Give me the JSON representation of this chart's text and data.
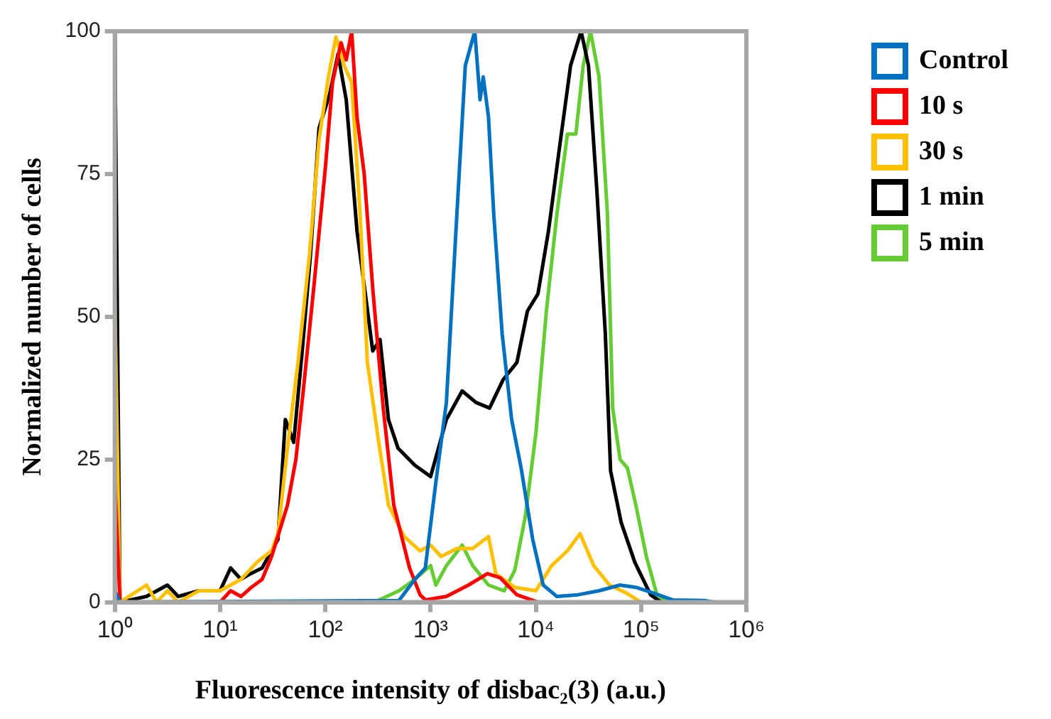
{
  "chart_data": {
    "type": "line",
    "xlabel": "Fluorescence intensity of disbac₂(3) (a.u.)",
    "ylabel": "Normalized number of cells",
    "log": "x",
    "xlim": [
      1,
      1000000
    ],
    "ylim": [
      0,
      100
    ],
    "xticks": [
      {
        "value": 1,
        "label": "10⁰"
      },
      {
        "value": 10,
        "label": "10¹"
      },
      {
        "value": 100,
        "label": "10²"
      },
      {
        "value": 1000,
        "label": "10³"
      },
      {
        "value": 10000,
        "label": "10⁴"
      },
      {
        "value": 100000,
        "label": "10⁵"
      },
      {
        "value": 1000000,
        "label": "10⁶"
      }
    ],
    "yticks": [
      0,
      25,
      50,
      75,
      100
    ],
    "grid": false,
    "legend": "right",
    "marker": "none",
    "line_style": "solid",
    "series": [
      {
        "name": "Control",
        "color": "#0070c0",
        "x": [
          1,
          1.12,
          501,
          708,
          891,
          1122,
          1413,
          1778,
          2138,
          2630,
          2951,
          3162,
          3548,
          3981,
          4786,
          5888,
          7244,
          9333,
          11750,
          15850,
          25120,
          39810,
          63100,
          89130,
          125900,
          199500,
          398100,
          501200
        ],
        "values": [
          2,
          0,
          0.3,
          4,
          6,
          21,
          35,
          68,
          94,
          100,
          88,
          92,
          85,
          68,
          47,
          32,
          23.5,
          11,
          3,
          1,
          1.3,
          2,
          3,
          2.6,
          1.7,
          0.4,
          0.3,
          0
        ]
      },
      {
        "name": "10 s",
        "color": "#ff0000",
        "x": [
          1,
          1.12,
          10,
          12.6,
          15.8,
          19.5,
          25.1,
          30.9,
          43.7,
          52.5,
          61.7,
          77.6,
          100,
          117,
          141,
          158,
          178,
          200,
          234,
          282,
          355,
          447,
          631,
          794,
          891,
          1413,
          2291,
          3467,
          4571,
          6607,
          10470
        ],
        "values": [
          21,
          0,
          0,
          2,
          1,
          2.5,
          4,
          8,
          17,
          25,
          37,
          55,
          76,
          91,
          98,
          95,
          100,
          85,
          75,
          55,
          34,
          17,
          6,
          1.3,
          0.4,
          1,
          3,
          5,
          4.3,
          1.3,
          0
        ]
      },
      {
        "name": "30 s",
        "color": "#ffc000",
        "x": [
          1,
          1.12,
          2,
          2.5,
          3.16,
          4,
          6.3,
          10,
          15.8,
          22.4,
          30.9,
          35.5,
          43.7,
          55,
          70.8,
          87.1,
          107,
          126,
          151,
          178,
          214,
          251,
          316,
          398,
          562,
          794,
          1000,
          1259,
          1778,
          2512,
          3548,
          4169,
          6310,
          10000,
          14130,
          19950,
          26300,
          35480,
          50120,
          70790,
          100000
        ],
        "values": [
          53,
          0,
          3,
          0,
          2,
          0,
          2,
          2,
          4,
          7,
          9,
          12,
          27,
          42,
          61,
          81,
          92,
          99,
          94,
          91,
          68,
          42,
          29,
          17,
          11.5,
          9,
          10,
          8,
          9.4,
          9.4,
          11.5,
          5,
          2.6,
          2,
          6.4,
          9,
          12,
          6.4,
          3,
          1.7,
          0
        ]
      },
      {
        "name": "1 min",
        "color": "#000000",
        "x": [
          1,
          1.12,
          2,
          3.16,
          4,
          6.3,
          10,
          12.6,
          15.8,
          19.5,
          25.1,
          30.9,
          35.5,
          41.7,
          50.1,
          60.3,
          72.4,
          87.1,
          110,
          132,
          158,
          200,
          240,
          282,
          331,
          398,
          490,
          708,
          1000,
          1413,
          1995,
          2692,
          3631,
          4898,
          6607,
          8318,
          10470,
          13180,
          16600,
          21380,
          26920,
          31620,
          38020,
          45710,
          51290,
          64570,
          87100,
          123000,
          154900
        ],
        "values": [
          100,
          0,
          1,
          3,
          1,
          2,
          2,
          6,
          4,
          5,
          6,
          9,
          11,
          32,
          28,
          44,
          61,
          83,
          89,
          96,
          88,
          65,
          54,
          44,
          46,
          32,
          27,
          24,
          22,
          32,
          37,
          35,
          34,
          39,
          42,
          51,
          54,
          65,
          79,
          94,
          100,
          94,
          72,
          47,
          23,
          14,
          7,
          1.3,
          0
        ]
      },
      {
        "name": "5 min",
        "color": "#66cc33",
        "x": [
          316,
          501,
          708,
          1000,
          1122,
          1413,
          1995,
          2512,
          3548,
          5012,
          6310,
          7943,
          10000,
          12590,
          15850,
          19950,
          23990,
          28180,
          33110,
          39810,
          47860,
          53700,
          63100,
          74130,
          89130,
          112200,
          141300,
          177800
        ],
        "values": [
          0.3,
          2,
          4,
          6.4,
          3,
          6.4,
          10,
          6.4,
          3,
          2,
          5.6,
          15,
          29.5,
          51,
          68,
          82,
          82,
          94,
          100,
          92,
          68,
          34,
          25,
          23.5,
          17,
          8,
          1.3,
          0
        ]
      }
    ]
  }
}
